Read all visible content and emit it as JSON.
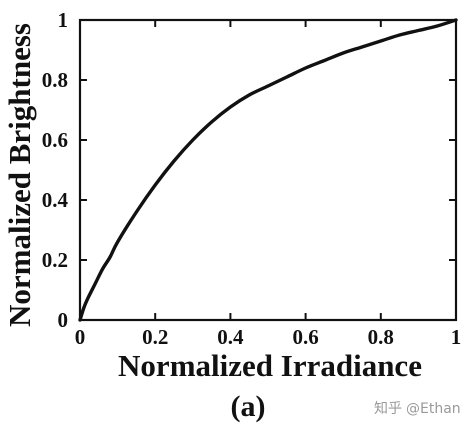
{
  "chart_data": {
    "type": "line",
    "xlabel": "Normalized Irradiance",
    "ylabel": "Normalized Brightness",
    "panel_label": "(a)",
    "xlim": [
      0,
      1
    ],
    "ylim": [
      0,
      1
    ],
    "x_ticks": [
      "0",
      "0.2",
      "0.4",
      "0.6",
      "0.8",
      "1"
    ],
    "y_ticks": [
      "0",
      "0.2",
      "0.4",
      "0.6",
      "0.8",
      "1"
    ],
    "grid": false,
    "legend": "none",
    "series": [
      {
        "color": "#111111",
        "x": [
          0,
          0.01,
          0.02,
          0.04,
          0.06,
          0.08,
          0.1,
          0.15,
          0.2,
          0.25,
          0.3,
          0.35,
          0.4,
          0.45,
          0.5,
          0.55,
          0.6,
          0.65,
          0.7,
          0.75,
          0.8,
          0.85,
          0.9,
          0.95,
          1.0
        ],
        "y": [
          0,
          0.04,
          0.07,
          0.12,
          0.17,
          0.21,
          0.26,
          0.36,
          0.45,
          0.53,
          0.6,
          0.66,
          0.71,
          0.75,
          0.78,
          0.81,
          0.84,
          0.865,
          0.89,
          0.91,
          0.93,
          0.95,
          0.965,
          0.98,
          1.0
        ]
      }
    ]
  },
  "watermark": {
    "logo": "知乎",
    "handle": "@Ethan"
  }
}
